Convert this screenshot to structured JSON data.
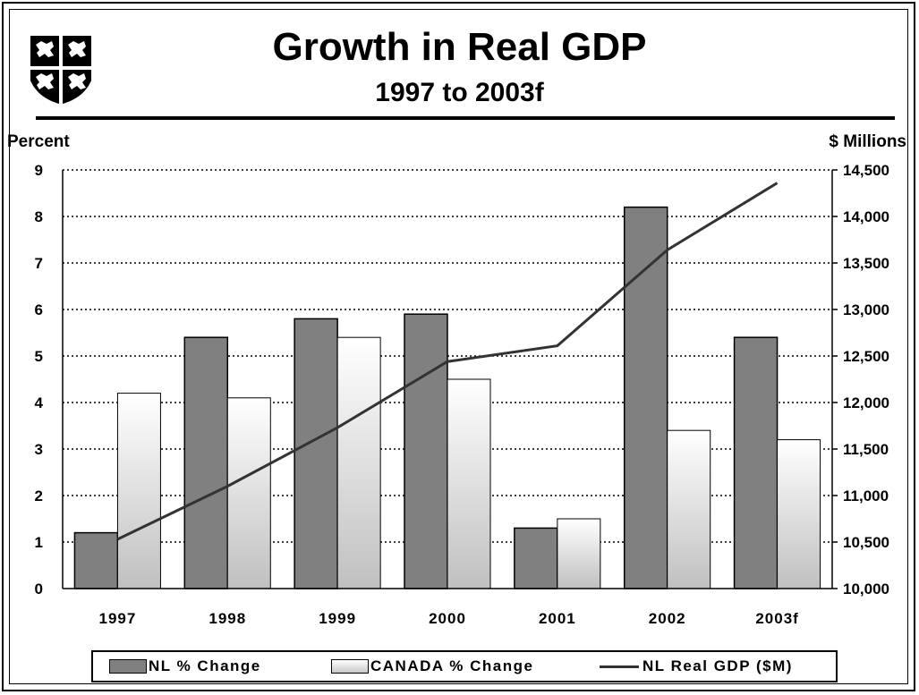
{
  "header": {
    "title": "Growth in Real GDP",
    "subtitle": "1997 to 2003f"
  },
  "crest": {
    "icon": "coat-of-arms-icon"
  },
  "colors": {
    "nl_bar": "#808080",
    "canada_bar_top": "#ffffff",
    "canada_bar_bottom": "#c0c0c0",
    "line": "#333333"
  },
  "chart_data": {
    "type": "bar",
    "title": "Growth in Real GDP",
    "subtitle": "1997 to 2003f",
    "categories": [
      "1997",
      "1998",
      "1999",
      "2000",
      "2001",
      "2002",
      "2003f"
    ],
    "ylabel": "Percent",
    "ylim": [
      0,
      9
    ],
    "yticks": [
      "0",
      "1",
      "2",
      "3",
      "4",
      "5",
      "6",
      "7",
      "8",
      "9"
    ],
    "y2label": "$ Millions",
    "y2lim": [
      10000,
      14500
    ],
    "y2ticks": [
      "10,000",
      "10,500",
      "11,000",
      "11,500",
      "12,000",
      "12,500",
      "13,000",
      "13,500",
      "14,000",
      "14,500"
    ],
    "grid": true,
    "legend_position": "bottom",
    "series": [
      {
        "name": "NL % Change",
        "type": "bar",
        "axis": "left",
        "values": [
          1.2,
          5.4,
          5.8,
          5.9,
          1.3,
          8.2,
          5.4
        ]
      },
      {
        "name": "CANADA % Change",
        "type": "bar",
        "axis": "left",
        "values": [
          4.2,
          4.1,
          5.4,
          4.5,
          1.5,
          3.4,
          3.2
        ]
      },
      {
        "name": "NL Real GDP ($M)",
        "type": "line",
        "axis": "right",
        "values": [
          10530,
          11100,
          11730,
          12440,
          12610,
          13640,
          14360
        ]
      }
    ]
  }
}
